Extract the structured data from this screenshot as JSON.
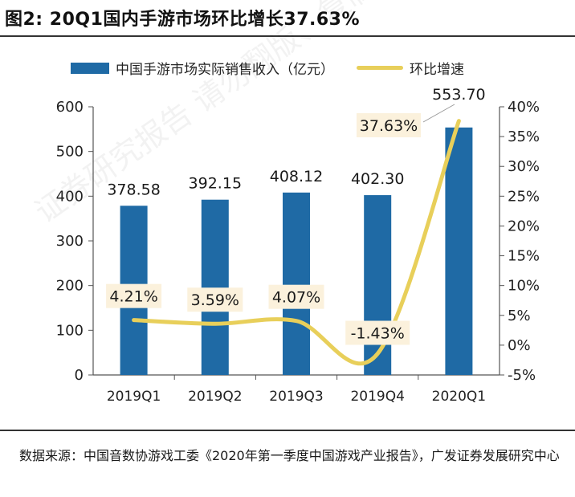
{
  "figure": {
    "title": "图2:  20Q1国内手游市场环比增长37.63%",
    "watermark": "证券研究报告  请勿翻版、复制、转载"
  },
  "legend": {
    "bar_label": "中国手游市场实际销售收入（亿元）",
    "line_label": "环比增速"
  },
  "colors": {
    "bar": "#1f6aa5",
    "line": "#e8cf5a",
    "label_bg": "#fbf1dc",
    "axis": "#555555"
  },
  "chart_data": {
    "type": "bar",
    "title": "20Q1国内手游市场环比增长37.63%",
    "categories": [
      "2019Q1",
      "2019Q2",
      "2019Q3",
      "2019Q4",
      "2020Q1"
    ],
    "series": [
      {
        "name": "中国手游市场实际销售收入（亿元）",
        "type": "bar",
        "axis": "left",
        "values": [
          378.58,
          392.15,
          408.12,
          402.3,
          553.7
        ],
        "labels": [
          "378.58",
          "392.15",
          "408.12",
          "402.30",
          "553.70"
        ]
      },
      {
        "name": "环比增速",
        "type": "line",
        "axis": "right",
        "values": [
          4.21,
          3.59,
          4.07,
          -1.43,
          37.63
        ],
        "labels": [
          "4.21%",
          "3.59%",
          "4.07%",
          "-1.43%",
          "37.63%"
        ]
      }
    ],
    "y_left": {
      "min": 0,
      "max": 600,
      "ticks": [
        "0",
        "100",
        "200",
        "300",
        "400",
        "500",
        "600"
      ]
    },
    "y_right": {
      "min": -5,
      "max": 40,
      "ticks": [
        "-5%",
        "0%",
        "5%",
        "10%",
        "15%",
        "20%",
        "25%",
        "30%",
        "35%",
        "40%"
      ]
    },
    "grid": false,
    "legend_position": "top"
  },
  "source": {
    "text": "数据来源：中国音数协游戏工委《2020年第一季度中国游戏产业报告》，广发证券发展研究中心"
  }
}
